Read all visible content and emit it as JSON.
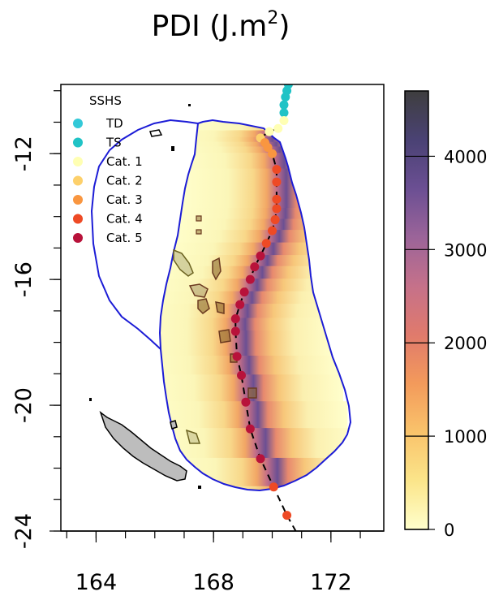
{
  "chart_data": {
    "type": "heatmap",
    "title": "PDI (J.m",
    "title_sup": "2",
    "title_close": ")",
    "xlim": [
      162.8,
      173.8
    ],
    "ylim": [
      -24,
      -9.8
    ],
    "x_ticks": [
      164,
      168,
      172
    ],
    "y_ticks": [
      -12,
      -16,
      -20,
      -24
    ],
    "colorbar": {
      "range": [
        0,
        4700
      ],
      "ticks": [
        0,
        1000,
        2000,
        3000,
        4000
      ],
      "colors": [
        "#ffffcc",
        "#fbe58a",
        "#f9c36b",
        "#f39a5b",
        "#e07a6c",
        "#c5718a",
        "#9b6499",
        "#6b4f93",
        "#4a4274",
        "#3e3e3e"
      ]
    },
    "legend": {
      "title": "SSHS",
      "placement": "top-left",
      "items": [
        {
          "label": "TD",
          "color": "#33c9d8"
        },
        {
          "label": "TS",
          "color": "#20c3c6"
        },
        {
          "label": "Cat. 1",
          "color": "#ffffb3"
        },
        {
          "label": "Cat. 2",
          "color": "#fdd06b"
        },
        {
          "label": "Cat. 3",
          "color": "#f99640"
        },
        {
          "label": "Cat. 4",
          "color": "#ee4a25"
        },
        {
          "label": "Cat. 5",
          "color": "#b8123a"
        }
      ]
    },
    "track": [
      {
        "lon": 170.55,
        "lat": -9.8,
        "cat": "TS"
      },
      {
        "lon": 170.5,
        "lat": -10.0,
        "cat": "TS"
      },
      {
        "lon": 170.45,
        "lat": -10.2,
        "cat": "TS"
      },
      {
        "lon": 170.4,
        "lat": -10.45,
        "cat": "TS"
      },
      {
        "lon": 170.4,
        "lat": -10.7,
        "cat": "TS"
      },
      {
        "lon": 170.4,
        "lat": -10.95,
        "cat": "Cat. 1"
      },
      {
        "lon": 170.2,
        "lat": -11.2,
        "cat": "Cat. 1"
      },
      {
        "lon": 169.9,
        "lat": -11.3,
        "cat": "Cat. 1"
      },
      {
        "lon": 169.6,
        "lat": -11.5,
        "cat": "Cat. 2"
      },
      {
        "lon": 169.75,
        "lat": -11.65,
        "cat": "Cat. 3"
      },
      {
        "lon": 169.85,
        "lat": -11.8,
        "cat": "Cat. 3"
      },
      {
        "lon": 170.0,
        "lat": -12.0,
        "cat": "Cat. 3"
      },
      {
        "lon": 170.15,
        "lat": -12.5,
        "cat": "Cat. 4"
      },
      {
        "lon": 170.15,
        "lat": -12.9,
        "cat": "Cat. 4"
      },
      {
        "lon": 170.15,
        "lat": -13.45,
        "cat": "Cat. 4"
      },
      {
        "lon": 170.15,
        "lat": -13.75,
        "cat": "Cat. 4"
      },
      {
        "lon": 170.1,
        "lat": -14.1,
        "cat": "Cat. 4"
      },
      {
        "lon": 170.0,
        "lat": -14.45,
        "cat": "Cat. 4"
      },
      {
        "lon": 169.8,
        "lat": -14.85,
        "cat": "Cat. 4"
      },
      {
        "lon": 169.6,
        "lat": -15.25,
        "cat": "Cat. 5"
      },
      {
        "lon": 169.4,
        "lat": -15.6,
        "cat": "Cat. 5"
      },
      {
        "lon": 169.25,
        "lat": -16.0,
        "cat": "Cat. 5"
      },
      {
        "lon": 169.05,
        "lat": -16.4,
        "cat": "Cat. 5"
      },
      {
        "lon": 168.9,
        "lat": -16.8,
        "cat": "Cat. 5"
      },
      {
        "lon": 168.75,
        "lat": -17.25,
        "cat": "Cat. 5"
      },
      {
        "lon": 168.75,
        "lat": -17.65,
        "cat": "Cat. 5"
      },
      {
        "lon": 168.8,
        "lat": -18.45,
        "cat": "Cat. 5"
      },
      {
        "lon": 168.95,
        "lat": -19.05,
        "cat": "Cat. 5"
      },
      {
        "lon": 169.1,
        "lat": -19.9,
        "cat": "Cat. 5"
      },
      {
        "lon": 169.25,
        "lat": -20.75,
        "cat": "Cat. 5"
      },
      {
        "lon": 169.6,
        "lat": -21.7,
        "cat": "Cat. 5"
      },
      {
        "lon": 170.05,
        "lat": -22.6,
        "cat": "Cat. 4"
      },
      {
        "lon": 170.5,
        "lat": -23.5,
        "cat": "Cat. 4"
      }
    ]
  }
}
